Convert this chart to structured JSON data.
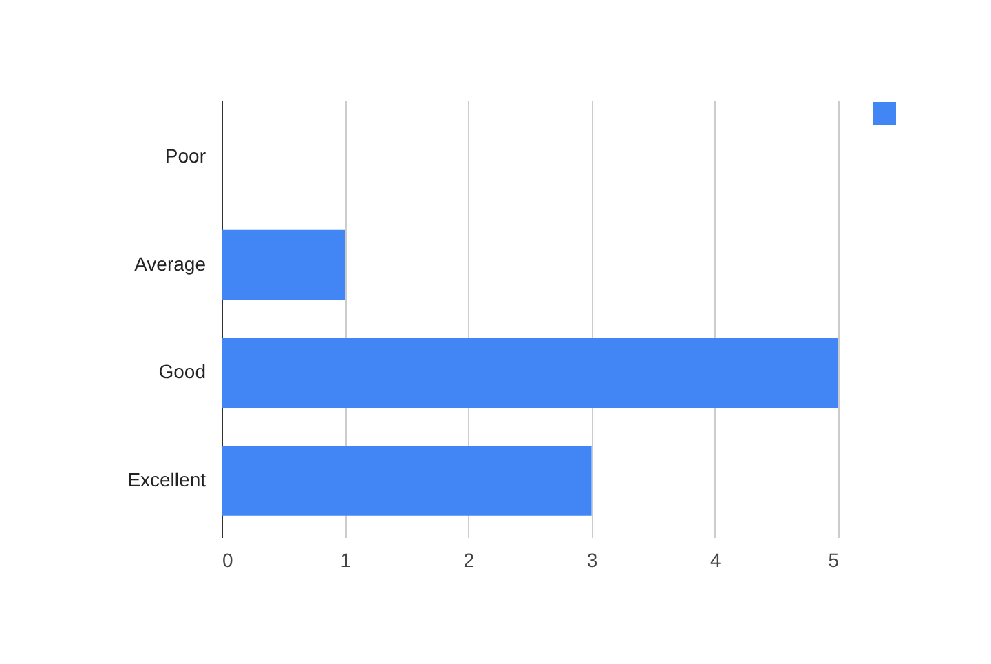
{
  "chart_data": {
    "type": "bar",
    "orientation": "horizontal",
    "categories": [
      "Poor",
      "Average",
      "Good",
      "Excellent"
    ],
    "series": [
      {
        "color": "#4285f4",
        "values": [
          0,
          1,
          5,
          3
        ]
      }
    ],
    "xlim": [
      0,
      5
    ],
    "xticks": [
      0,
      1,
      2,
      3,
      4,
      5
    ],
    "grid": "x"
  }
}
